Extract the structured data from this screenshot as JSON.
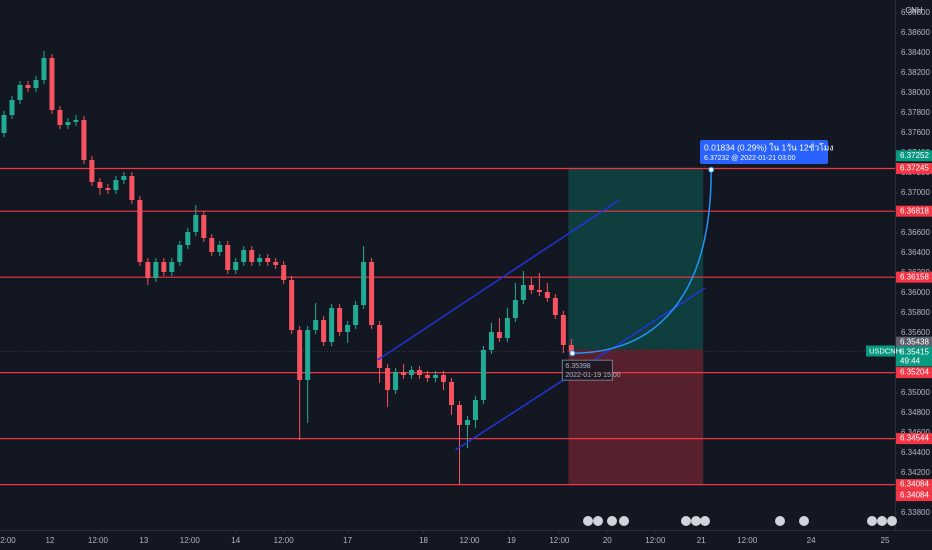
{
  "chart_data": {
    "type": "candlestick",
    "symbol": "USDCNH",
    "currency": "CNH",
    "xlim": [
      0,
      224
    ],
    "ylim": [
      6.3363,
      6.3893
    ],
    "xticks": [
      {
        "value": 2,
        "label": "2:00"
      },
      {
        "value": 12.5,
        "label": "12"
      },
      {
        "value": 24.5,
        "label": "12:00"
      },
      {
        "value": 36,
        "label": "13"
      },
      {
        "value": 47.5,
        "label": "12:00"
      },
      {
        "value": 59,
        "label": "14"
      },
      {
        "value": 71,
        "label": "12:00"
      },
      {
        "value": 87,
        "label": "17"
      },
      {
        "value": 106,
        "label": "18"
      },
      {
        "value": 117.5,
        "label": "12:00"
      },
      {
        "value": 128,
        "label": "19"
      },
      {
        "value": 140,
        "label": "12:00"
      },
      {
        "value": 152,
        "label": "20"
      },
      {
        "value": 164,
        "label": "12:00"
      },
      {
        "value": 175.5,
        "label": "21"
      },
      {
        "value": 187,
        "label": "12:00"
      },
      {
        "value": 203,
        "label": "24"
      },
      {
        "value": 221.5,
        "label": "25"
      }
    ],
    "yticks": [
      {
        "value": 6.338,
        "label": "6.33800"
      },
      {
        "value": 6.34,
        "label": "6.34000"
      },
      {
        "value": 6.342,
        "label": "6.34200"
      },
      {
        "value": 6.344,
        "label": "6.34400"
      },
      {
        "value": 6.346,
        "label": "6.34600"
      },
      {
        "value": 6.348,
        "label": "6.34800"
      },
      {
        "value": 6.35,
        "label": "6.35000"
      },
      {
        "value": 6.352,
        "label": "6.35200"
      },
      {
        "value": 6.354,
        "label": "6.35400"
      },
      {
        "value": 6.356,
        "label": "6.35600"
      },
      {
        "value": 6.358,
        "label": "6.35800"
      },
      {
        "value": 6.36,
        "label": "6.36000"
      },
      {
        "value": 6.362,
        "label": "6.36200"
      },
      {
        "value": 6.364,
        "label": "6.36400"
      },
      {
        "value": 6.366,
        "label": "6.36600"
      },
      {
        "value": 6.368,
        "label": "6.36800"
      },
      {
        "value": 6.37,
        "label": "6.37000"
      },
      {
        "value": 6.372,
        "label": "6.37200"
      },
      {
        "value": 6.374,
        "label": "6.37400"
      },
      {
        "value": 6.376,
        "label": "6.37600"
      },
      {
        "value": 6.378,
        "label": "6.37800"
      },
      {
        "value": 6.38,
        "label": "6.38000"
      },
      {
        "value": 6.382,
        "label": "6.38200"
      },
      {
        "value": 6.384,
        "label": "6.38400"
      },
      {
        "value": 6.386,
        "label": "6.38600"
      },
      {
        "value": 6.388,
        "label": "6.38800"
      }
    ],
    "up_color": "#22ab94",
    "down_color": "#f7525f",
    "x": [
      1,
      3,
      5,
      7,
      9,
      11,
      13,
      15,
      17,
      19,
      21,
      23,
      25,
      27,
      29,
      31,
      33,
      35,
      37,
      39,
      41,
      43,
      45,
      47,
      49,
      51,
      53,
      55,
      57,
      59,
      61,
      63,
      65,
      67,
      69,
      71,
      73,
      75,
      77,
      79,
      81,
      83,
      85,
      87,
      89,
      91,
      93,
      95,
      97,
      99,
      101,
      103,
      105,
      107,
      109,
      111,
      113,
      115,
      117,
      119,
      121,
      123,
      125,
      127,
      129,
      131,
      133,
      135,
      137,
      139,
      141,
      143
    ],
    "open": [
      6.376,
      6.3778,
      6.3793,
      6.3808,
      6.3805,
      6.3813,
      6.3835,
      6.3783,
      6.3768,
      6.3771,
      6.3773,
      6.3733,
      6.3711,
      6.3705,
      6.3703,
      6.3713,
      6.3717,
      6.3693,
      6.3631,
      6.3615,
      6.3631,
      6.3621,
      6.3631,
      6.3648,
      6.3661,
      6.3678,
      6.3655,
      6.3641,
      6.3648,
      6.3623,
      6.3631,
      6.3643,
      6.3631,
      6.3635,
      6.3631,
      6.3628,
      6.3613,
      6.3563,
      6.3513,
      6.3563,
      6.3573,
      6.3551,
      6.3585,
      6.3561,
      6.3568,
      6.3588,
      6.3631,
      6.3568,
      6.3525,
      6.3503,
      6.3521,
      6.3518,
      6.3523,
      6.3518,
      6.3515,
      6.3518,
      6.3511,
      6.3488,
      6.3468,
      6.3473,
      6.3493,
      6.3543,
      6.3561,
      6.3555,
      6.3575,
      6.3593,
      6.3608,
      6.3603,
      6.3601,
      6.3595,
      6.3578,
      6.3548
    ],
    "high": [
      6.3782,
      6.3797,
      6.3812,
      6.3812,
      6.3817,
      6.3842,
      6.3839,
      6.3787,
      6.3775,
      6.3778,
      6.3777,
      6.3737,
      6.3715,
      6.3709,
      6.3717,
      6.3721,
      6.3721,
      6.3697,
      6.3635,
      6.3635,
      6.3635,
      6.3635,
      6.3652,
      6.3665,
      6.3688,
      6.3682,
      6.3659,
      6.3652,
      6.3652,
      6.3635,
      6.3647,
      6.3647,
      6.3639,
      6.3639,
      6.3635,
      6.3632,
      6.3617,
      6.3567,
      6.3567,
      6.359,
      6.3577,
      6.3589,
      6.3589,
      6.3572,
      6.3592,
      6.3647,
      6.3635,
      6.3572,
      6.3529,
      6.3525,
      6.3529,
      6.3527,
      6.3527,
      6.3522,
      6.3522,
      6.3522,
      6.3515,
      6.3492,
      6.3477,
      6.3497,
      6.3547,
      6.357,
      6.3575,
      6.3585,
      6.361,
      6.3622,
      6.3615,
      6.362,
      6.361,
      6.3599,
      6.3582,
      6.3554
    ],
    "low": [
      6.3756,
      6.3774,
      6.3789,
      6.3801,
      6.3801,
      6.3809,
      6.3779,
      6.3764,
      6.3764,
      6.3767,
      6.3729,
      6.3707,
      6.3698,
      6.3699,
      6.3699,
      6.3709,
      6.3689,
      6.3627,
      6.3608,
      6.3611,
      6.3617,
      6.3617,
      6.3627,
      6.3644,
      6.3657,
      6.3651,
      6.3637,
      6.3637,
      6.3619,
      6.3619,
      6.3627,
      6.3627,
      6.3627,
      6.3627,
      6.3624,
      6.3609,
      6.3559,
      6.3453,
      6.347,
      6.3559,
      6.3547,
      6.3547,
      6.3557,
      6.355,
      6.3564,
      6.3584,
      6.3564,
      6.351,
      6.3486,
      6.3499,
      6.3514,
      6.3514,
      6.3514,
      6.3511,
      6.3511,
      6.3503,
      6.3478,
      6.3408,
      6.3445,
      6.3465,
      6.3489,
      6.3539,
      6.3551,
      6.3551,
      6.3571,
      6.3589,
      6.3599,
      6.3597,
      6.3591,
      6.3574,
      6.354,
      6.3537
    ],
    "close": [
      6.3778,
      6.3793,
      6.3808,
      6.3805,
      6.3813,
      6.3835,
      6.3783,
      6.3768,
      6.3771,
      6.3773,
      6.3733,
      6.3711,
      6.3705,
      6.3703,
      6.3713,
      6.3717,
      6.3693,
      6.3631,
      6.3615,
      6.3631,
      6.3621,
      6.3631,
      6.3648,
      6.3661,
      6.3678,
      6.3655,
      6.3641,
      6.3648,
      6.3623,
      6.3631,
      6.3643,
      6.3631,
      6.3635,
      6.3631,
      6.3628,
      6.3613,
      6.3563,
      6.3513,
      6.3563,
      6.3573,
      6.3551,
      6.3585,
      6.3561,
      6.3568,
      6.3588,
      6.3631,
      6.3568,
      6.3525,
      6.3503,
      6.3521,
      6.3518,
      6.3523,
      6.3518,
      6.3515,
      6.3518,
      6.3511,
      6.3488,
      6.3468,
      6.3473,
      6.3493,
      6.3543,
      6.3561,
      6.3555,
      6.3575,
      6.3593,
      6.3608,
      6.3603,
      6.3601,
      6.3595,
      6.3578,
      6.3548,
      6.3541
    ],
    "levels": {
      "color": "#f23645",
      "values": [
        6.37245,
        6.36818,
        6.36158,
        6.35204,
        6.34544,
        6.34084
      ]
    },
    "position": {
      "x": [
        142.25,
        176
      ],
      "entry": 6.35438,
      "target": 6.37252,
      "stop": 6.34084
    },
    "last_price": {
      "value": 6.35415,
      "countdown": "49:44"
    },
    "trend_lines": {
      "color": "#2134d8",
      "lines": [
        {
          "x": [
            94.5,
            155
          ],
          "y": [
            6.3533,
            6.3693
          ]
        },
        {
          "x": [
            114,
            176.5
          ],
          "y": [
            6.3443,
            6.3605
          ]
        }
      ]
    },
    "projection": {
      "color": "#2196f3",
      "x": [
        143.25,
        178
      ],
      "y": [
        6.35398,
        6.37232
      ],
      "start_time": "2022-01-19 15:00",
      "text": "0.01834 (0.29%) ใน 1วัน 12ชั่วโมง",
      "subtext": "6.37232 @ 2022-01-21  03:00"
    }
  }
}
